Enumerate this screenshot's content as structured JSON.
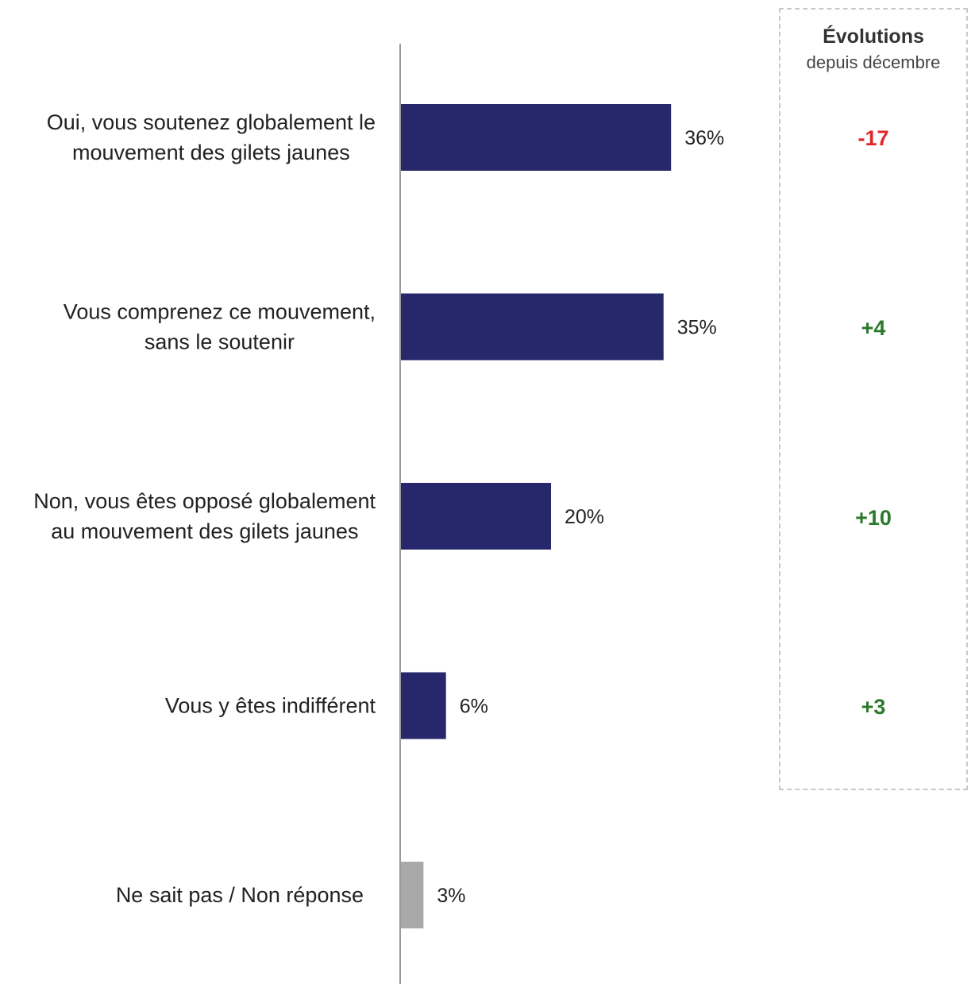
{
  "chart_data": {
    "type": "bar",
    "orientation": "horizontal",
    "categories": [
      [
        "Oui, vous soutenez globalement le",
        "mouvement des gilets jaunes"
      ],
      [
        "Vous comprenez ce mouvement,",
        "sans le soutenir"
      ],
      [
        "Non, vous êtes opposé globalement",
        "au mouvement des gilets jaunes"
      ],
      [
        "Vous y êtes indifférent"
      ],
      [
        "Ne sait pas / Non réponse"
      ]
    ],
    "values": [
      36,
      35,
      20,
      6,
      3
    ],
    "value_labels": [
      "36%",
      "35%",
      "20%",
      "6%",
      "3%"
    ],
    "bar_colors": [
      "#27286c",
      "#27286c",
      "#27286c",
      "#27286c",
      "#a9a9a9"
    ],
    "xlim": [
      0,
      100
    ],
    "grid": false,
    "legend": "none"
  },
  "evolution": {
    "title": "Évolutions",
    "subtitle": "depuis décembre",
    "items": [
      {
        "value": "-17",
        "color": "#e0262b"
      },
      {
        "value": "+4",
        "color": "#2b7a2b"
      },
      {
        "value": "+10",
        "color": "#2b7a2b"
      },
      {
        "value": "+3",
        "color": "#2b7a2b"
      }
    ]
  }
}
